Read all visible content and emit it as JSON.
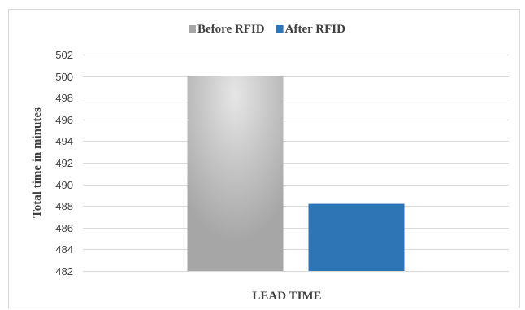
{
  "chart_data": {
    "type": "bar",
    "categories": [
      "LEAD TIME"
    ],
    "series": [
      {
        "name": "Before RFID",
        "values": [
          500
        ],
        "color": "#a6a6a6"
      },
      {
        "name": "After RFID",
        "values": [
          488.2
        ],
        "color": "#2e75b6"
      }
    ],
    "title": "",
    "xlabel": "LEAD TIME",
    "ylabel": "Total time in minutes",
    "ylim": [
      482,
      502
    ],
    "yticks": [
      482,
      484,
      486,
      488,
      490,
      492,
      494,
      496,
      498,
      500,
      502
    ],
    "grid": true,
    "legend_position": "top"
  }
}
